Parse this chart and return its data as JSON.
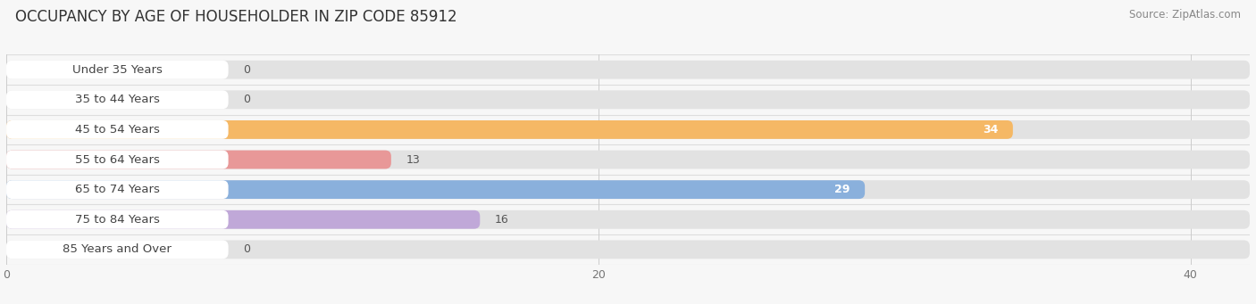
{
  "title": "OCCUPANCY BY AGE OF HOUSEHOLDER IN ZIP CODE 85912",
  "source": "Source: ZipAtlas.com",
  "categories": [
    "Under 35 Years",
    "35 to 44 Years",
    "45 to 54 Years",
    "55 to 64 Years",
    "65 to 74 Years",
    "75 to 84 Years",
    "85 Years and Over"
  ],
  "values": [
    0,
    0,
    34,
    13,
    29,
    16,
    0
  ],
  "bar_colors": [
    "#b8b8e8",
    "#f4a8c0",
    "#f5b865",
    "#e89898",
    "#8ab0dc",
    "#c0a8d8",
    "#7dd4cc"
  ],
  "bar_bg_color": "#e2e2e2",
  "xlim": [
    0,
    42
  ],
  "xticks": [
    0,
    20,
    40
  ],
  "title_fontsize": 12,
  "source_fontsize": 8.5,
  "label_fontsize": 9.5,
  "value_fontsize": 9,
  "background_color": "#f7f7f7",
  "plot_bg_color": "#f7f7f7",
  "bar_height": 0.62,
  "row_sep_color": "#dddddd",
  "label_box_color": "#ffffff",
  "label_text_color": "#444444",
  "value_text_color_inside": "#ffffff",
  "value_text_color_outside": "#555555"
}
